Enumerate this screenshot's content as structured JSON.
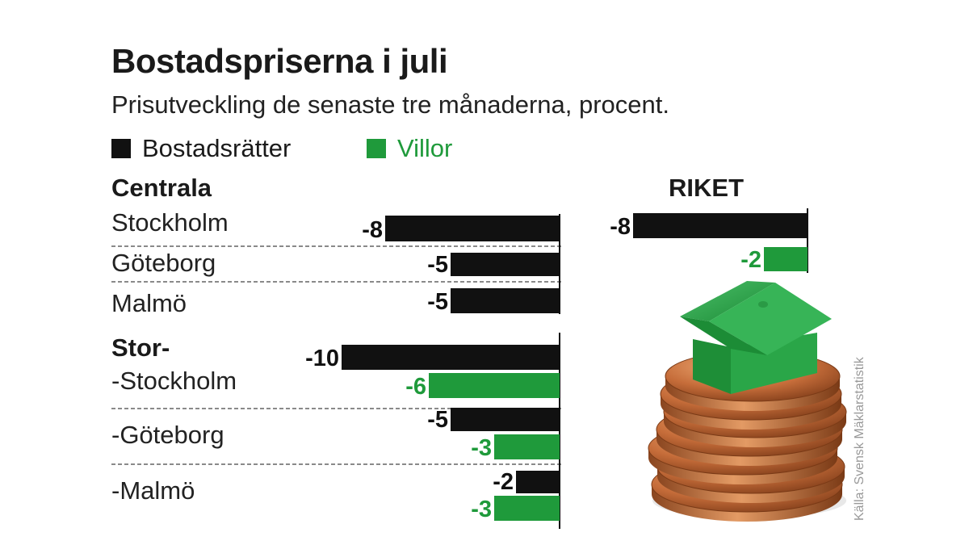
{
  "title": "Bostadspriserna i juli",
  "subtitle": "Prisutveckling de senaste tre månaderna, procent.",
  "legend": [
    {
      "label": "Bostadsrätter",
      "color": "#111111"
    },
    {
      "label": "Villor",
      "color": "#1f9a3b"
    }
  ],
  "colors": {
    "bostadsratter": "#111111",
    "villor": "#1f9a3b"
  },
  "sections": {
    "centrala": "Centrala",
    "stor": "Stor-",
    "riket": "RIKET"
  },
  "row_labels": {
    "stockholm": "Stockholm",
    "goteborg": "Göteborg",
    "malmo": "Malmö",
    "stor_stockholm": "-Stockholm",
    "stor_goteborg": "-Göteborg",
    "stor_malmo": "-Malmö"
  },
  "source": "Källa: Svensk Mäklarstatistik",
  "chart_data": {
    "type": "bar",
    "orientation": "horizontal",
    "unit": "procent",
    "series_names": [
      "Bostadsrätter",
      "Villor"
    ],
    "groups": [
      {
        "category": "Centrala Stockholm",
        "bostadsratter": -8
      },
      {
        "category": "Centrala Göteborg",
        "bostadsratter": -5
      },
      {
        "category": "Centrala Malmö",
        "bostadsratter": -5
      },
      {
        "category": "Stor-Stockholm",
        "bostadsratter": -10,
        "villor": -6
      },
      {
        "category": "Stor-Göteborg",
        "bostadsratter": -5,
        "villor": -3
      },
      {
        "category": "Stor-Malmö",
        "bostadsratter": -2,
        "villor": -3
      },
      {
        "category": "Riket",
        "bostadsratter": -8,
        "villor": -2
      }
    ]
  }
}
